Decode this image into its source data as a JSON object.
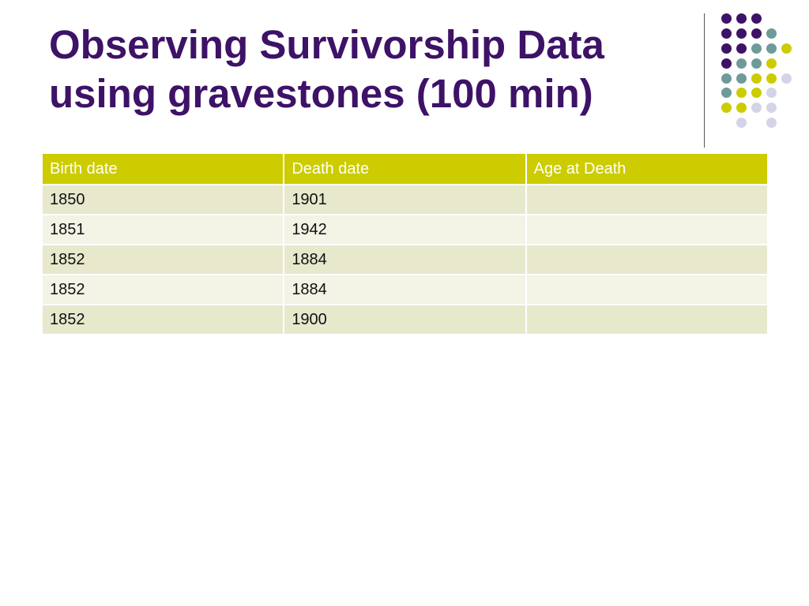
{
  "slide": {
    "title_line1": "Observing Survivorship Data",
    "title_line2": "using gravestones (100 min)"
  },
  "decoration": {
    "name": "dot-grid-ornament",
    "colors": {
      "purple": "#3d1267",
      "teal": "#6f9a9a",
      "olive": "#cccc00",
      "lavender": "#d4d4e8"
    }
  },
  "table": {
    "headers": [
      "Birth date",
      "Death date",
      "Age at Death"
    ],
    "rows": [
      [
        "1850",
        "1901",
        ""
      ],
      [
        "1851",
        "1942",
        ""
      ],
      [
        "1852",
        "1884",
        ""
      ],
      [
        "1852",
        "1884",
        ""
      ],
      [
        "1852",
        "1900",
        ""
      ]
    ],
    "header_color": "#cccc00",
    "row_color_a": "#e8e8cd",
    "row_color_b": "#f3f3e6"
  }
}
